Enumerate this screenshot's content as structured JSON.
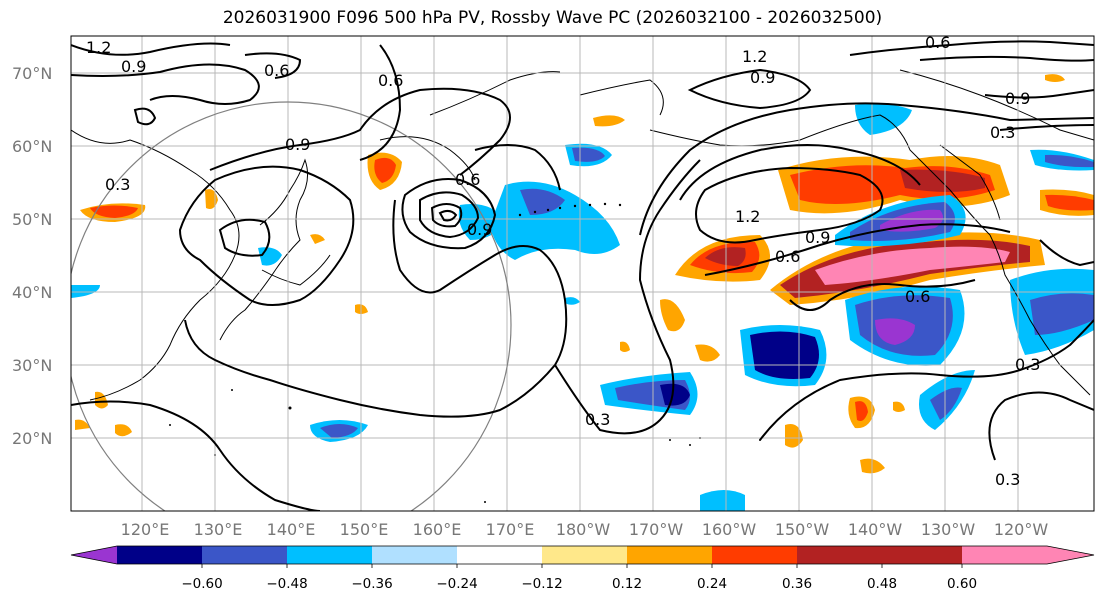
{
  "title": "2026031900 F096 500 hPa PV, Rossby Wave PC (2026032100 - 2026032500)",
  "lat_labels": [
    "70°N",
    "60°N",
    "50°N",
    "40°N",
    "30°N",
    "20°N"
  ],
  "lon_labels": [
    "120°E",
    "130°E",
    "140°E",
    "150°E",
    "160°E",
    "170°E",
    "180°W",
    "170°W",
    "160°W",
    "150°W",
    "140°W",
    "130°W",
    "120°W"
  ],
  "colorbar": {
    "ticks": [
      "−0.60",
      "−0.48",
      "−0.36",
      "−0.24",
      "−0.12",
      "0.12",
      "0.24",
      "0.36",
      "0.48",
      "0.60"
    ],
    "colors": [
      "#9a35d1",
      "#000088",
      "#3b56c8",
      "#00bfff",
      "#b0e0ff",
      "#ffffff",
      "#ffe88a",
      "#ffa500",
      "#ff3c00",
      "#b22222",
      "#ff85b4"
    ]
  },
  "contour_labels": [
    {
      "text": "1.2"
    },
    {
      "text": "0.9"
    },
    {
      "text": "0.6"
    },
    {
      "text": "0.6"
    },
    {
      "text": "0.9"
    },
    {
      "text": "0.3"
    },
    {
      "text": "0.6"
    },
    {
      "text": "0.9"
    },
    {
      "text": "0.3"
    },
    {
      "text": "1.2"
    },
    {
      "text": "0.9"
    },
    {
      "text": "0.6"
    },
    {
      "text": "0.9"
    },
    {
      "text": "0.3"
    },
    {
      "text": "1.2"
    },
    {
      "text": "0.6"
    },
    {
      "text": "0.9"
    },
    {
      "text": "0.6"
    },
    {
      "text": "0.3"
    },
    {
      "text": "0.3"
    }
  ]
}
